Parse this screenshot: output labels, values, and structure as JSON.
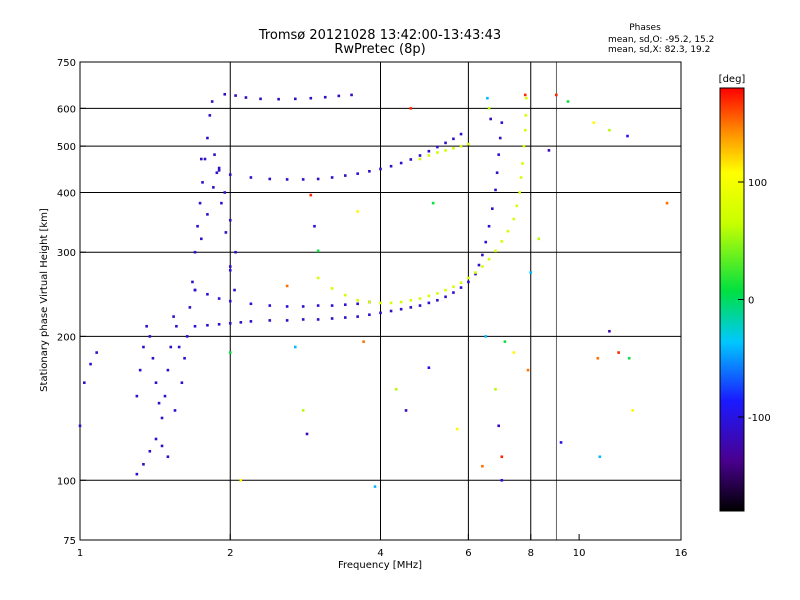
{
  "chart_data": {
    "type": "scatter",
    "title": "Tromsø 20121028 13:42:00-13:43:43",
    "subtitle": "RwPretec (8p)",
    "stats": {
      "title": "Phases",
      "line_o": "mean, sd,O: -95.2, 15.2",
      "line_x": "mean, sd,X: 82.3, 19.2"
    },
    "xlabel": "Frequency [MHz]",
    "ylabel": "Stationary phase Virtual Height [km]",
    "x_scale": "log",
    "y_scale": "log",
    "xlim": [
      1,
      16
    ],
    "ylim": [
      75,
      750
    ],
    "xticks": [
      1,
      2,
      4,
      6,
      8,
      10,
      16
    ],
    "xtick_labels": [
      "1",
      "2",
      "4",
      "6",
      "8",
      "10",
      "16"
    ],
    "xgrid": [
      2,
      4,
      6,
      8
    ],
    "yticks": [
      75,
      100,
      200,
      300,
      400,
      500,
      600,
      750
    ],
    "ytick_labels": [
      "75",
      "100",
      "200",
      "300",
      "400",
      "500",
      "600",
      "750"
    ],
    "ygrid": [
      100,
      200,
      300,
      400,
      500,
      600
    ],
    "grid": true,
    "colorbar": {
      "label": "[deg]",
      "range": [
        -180,
        180
      ],
      "ticks": [
        100,
        0,
        -100
      ],
      "tick_labels": [
        "100",
        "0",
        "-100"
      ],
      "colormap": "rainbow (black-purple-blue-cyan-green-yellow-red)"
    },
    "series": [
      {
        "trace": "E-region spread echoes (O)",
        "phase": -110,
        "points": [
          [
            1.0,
            130
          ],
          [
            1.02,
            160
          ],
          [
            1.05,
            175
          ],
          [
            1.08,
            185
          ],
          [
            1.3,
            150
          ],
          [
            1.32,
            170
          ],
          [
            1.34,
            190
          ],
          [
            1.36,
            210
          ],
          [
            1.38,
            200
          ],
          [
            1.4,
            180
          ],
          [
            1.42,
            160
          ],
          [
            1.44,
            145
          ],
          [
            1.46,
            135
          ],
          [
            1.48,
            150
          ],
          [
            1.5,
            170
          ],
          [
            1.52,
            190
          ],
          [
            1.54,
            220
          ],
          [
            1.56,
            210
          ],
          [
            1.58,
            190
          ],
          [
            1.3,
            103
          ],
          [
            1.34,
            108
          ],
          [
            1.38,
            115
          ],
          [
            1.42,
            122
          ],
          [
            1.46,
            118
          ],
          [
            1.5,
            112
          ],
          [
            1.55,
            140
          ],
          [
            1.6,
            160
          ],
          [
            1.62,
            180
          ],
          [
            1.64,
            200
          ],
          [
            1.66,
            230
          ],
          [
            1.68,
            260
          ],
          [
            1.7,
            300
          ],
          [
            1.72,
            340
          ],
          [
            1.74,
            380
          ],
          [
            1.76,
            420
          ],
          [
            1.78,
            470
          ],
          [
            1.8,
            520
          ],
          [
            1.82,
            580
          ],
          [
            1.84,
            620
          ],
          [
            1.7,
            250
          ],
          [
            1.75,
            320
          ],
          [
            1.8,
            360
          ],
          [
            1.85,
            410
          ],
          [
            1.9,
            450
          ],
          [
            1.95,
            400
          ],
          [
            2.0,
            350
          ],
          [
            2.05,
            300
          ],
          [
            1.86,
            480
          ],
          [
            1.88,
            440
          ],
          [
            1.92,
            380
          ],
          [
            1.96,
            330
          ],
          [
            2.0,
            280
          ],
          [
            2.04,
            250
          ]
        ]
      },
      {
        "trace": "Low F-layer O trace",
        "phase": -110,
        "points": [
          [
            1.7,
            210
          ],
          [
            1.8,
            211
          ],
          [
            1.9,
            212
          ],
          [
            2.0,
            213
          ],
          [
            2.1,
            214
          ],
          [
            2.2,
            215
          ],
          [
            2.4,
            216
          ],
          [
            2.6,
            216
          ],
          [
            2.8,
            217
          ],
          [
            3.0,
            217
          ],
          [
            3.2,
            218
          ],
          [
            3.4,
            219
          ],
          [
            3.6,
            220
          ],
          [
            3.8,
            222
          ],
          [
            4.0,
            224
          ],
          [
            4.2,
            226
          ],
          [
            4.4,
            228
          ],
          [
            4.6,
            230
          ],
          [
            4.8,
            232
          ],
          [
            5.0,
            235
          ],
          [
            5.2,
            238
          ],
          [
            5.4,
            242
          ],
          [
            5.6,
            247
          ],
          [
            5.8,
            253
          ],
          [
            6.0,
            260
          ],
          [
            6.2,
            270
          ],
          [
            6.3,
            282
          ],
          [
            6.4,
            296
          ],
          [
            6.5,
            315
          ],
          [
            6.6,
            340
          ],
          [
            6.7,
            370
          ],
          [
            6.8,
            405
          ],
          [
            6.85,
            440
          ],
          [
            6.9,
            480
          ],
          [
            6.95,
            520
          ],
          [
            7.0,
            560
          ]
        ]
      },
      {
        "trace": "Mid F-layer O trace",
        "phase": -105,
        "points": [
          [
            1.7,
            250
          ],
          [
            1.8,
            245
          ],
          [
            1.9,
            240
          ],
          [
            2.0,
            237
          ],
          [
            2.2,
            234
          ],
          [
            2.4,
            232
          ],
          [
            2.6,
            231
          ],
          [
            2.8,
            231
          ],
          [
            3.0,
            232
          ],
          [
            3.2,
            232
          ],
          [
            3.4,
            233
          ],
          [
            3.6,
            234
          ],
          [
            3.8,
            236
          ]
        ]
      },
      {
        "trace": "Upper F2 O trace",
        "phase": -110,
        "points": [
          [
            1.75,
            470
          ],
          [
            1.9,
            445
          ],
          [
            2.0,
            436
          ],
          [
            2.2,
            430
          ],
          [
            2.4,
            427
          ],
          [
            2.6,
            426
          ],
          [
            2.8,
            426
          ],
          [
            3.0,
            427
          ],
          [
            3.2,
            430
          ],
          [
            3.4,
            434
          ],
          [
            3.6,
            438
          ],
          [
            3.8,
            443
          ],
          [
            4.0,
            448
          ],
          [
            4.2,
            454
          ],
          [
            4.4,
            461
          ],
          [
            4.6,
            469
          ],
          [
            4.8,
            478
          ],
          [
            5.0,
            488
          ],
          [
            5.2,
            498
          ],
          [
            5.4,
            508
          ],
          [
            5.6,
            518
          ],
          [
            5.8,
            530
          ]
        ]
      },
      {
        "trace": "Top echo cluster",
        "phase": -115,
        "points": [
          [
            1.95,
            642
          ],
          [
            2.05,
            638
          ],
          [
            2.15,
            632
          ],
          [
            2.3,
            628
          ],
          [
            2.5,
            627
          ],
          [
            2.7,
            628
          ],
          [
            2.9,
            630
          ],
          [
            3.1,
            633
          ],
          [
            3.3,
            637
          ],
          [
            3.5,
            640
          ]
        ]
      },
      {
        "trace": "X trace lower",
        "phase": 75,
        "points": [
          [
            3.0,
            265
          ],
          [
            3.2,
            252
          ],
          [
            3.4,
            244
          ],
          [
            3.6,
            238
          ],
          [
            3.8,
            236
          ],
          [
            4.0,
            235
          ],
          [
            4.2,
            235
          ],
          [
            4.4,
            236
          ],
          [
            4.6,
            238
          ],
          [
            4.8,
            240
          ],
          [
            5.0,
            243
          ],
          [
            5.2,
            246
          ],
          [
            5.4,
            250
          ],
          [
            5.6,
            254
          ],
          [
            5.8,
            259
          ],
          [
            6.0,
            265
          ],
          [
            6.2,
            272
          ],
          [
            6.4,
            280
          ],
          [
            6.6,
            290
          ],
          [
            6.8,
            302
          ],
          [
            7.0,
            316
          ],
          [
            7.2,
            332
          ],
          [
            7.4,
            352
          ],
          [
            7.5,
            375
          ],
          [
            7.6,
            400
          ],
          [
            7.65,
            430
          ],
          [
            7.7,
            460
          ],
          [
            7.75,
            500
          ],
          [
            7.8,
            540
          ],
          [
            7.82,
            580
          ],
          [
            7.84,
            630
          ]
        ]
      },
      {
        "trace": "X trace upper",
        "phase": 70,
        "points": [
          [
            4.8,
            470
          ],
          [
            5.0,
            478
          ],
          [
            5.2,
            485
          ],
          [
            5.4,
            490
          ],
          [
            5.6,
            495
          ],
          [
            5.8,
            500
          ],
          [
            6.0,
            505
          ]
        ]
      },
      {
        "trace": "Scattered noise",
        "phase": 0,
        "points": [
          [
            2.0,
            275
          ],
          [
            2.0,
            185
          ],
          [
            2.1,
            100
          ],
          [
            2.6,
            255
          ],
          [
            2.7,
            190
          ],
          [
            2.8,
            140
          ],
          [
            2.85,
            125
          ],
          [
            2.9,
            395
          ],
          [
            2.95,
            340
          ],
          [
            3.0,
            302
          ],
          [
            3.6,
            365
          ],
          [
            3.7,
            195
          ],
          [
            3.9,
            97
          ],
          [
            4.3,
            155
          ],
          [
            4.5,
            140
          ],
          [
            4.6,
            600
          ],
          [
            5.0,
            172
          ],
          [
            5.1,
            380
          ],
          [
            5.7,
            128
          ],
          [
            6.4,
            107
          ],
          [
            6.5,
            200
          ],
          [
            6.8,
            155
          ],
          [
            6.9,
            130
          ],
          [
            7.0,
            112
          ],
          [
            7.0,
            100
          ],
          [
            7.1,
            195
          ],
          [
            7.4,
            185
          ],
          [
            7.9,
            170
          ],
          [
            8.0,
            272
          ],
          [
            8.3,
            320
          ],
          [
            8.7,
            490
          ],
          [
            9.0,
            640
          ],
          [
            9.2,
            120
          ],
          [
            9.5,
            620
          ],
          [
            10.7,
            560
          ],
          [
            10.9,
            180
          ],
          [
            11.0,
            112
          ],
          [
            11.5,
            540
          ],
          [
            11.5,
            205
          ],
          [
            12.0,
            185
          ],
          [
            12.5,
            525
          ],
          [
            12.6,
            180
          ],
          [
            12.8,
            140
          ],
          [
            15.0,
            380
          ],
          [
            6.55,
            630
          ],
          [
            6.6,
            600
          ],
          [
            6.65,
            570
          ],
          [
            7.8,
            640
          ]
        ]
      }
    ]
  }
}
